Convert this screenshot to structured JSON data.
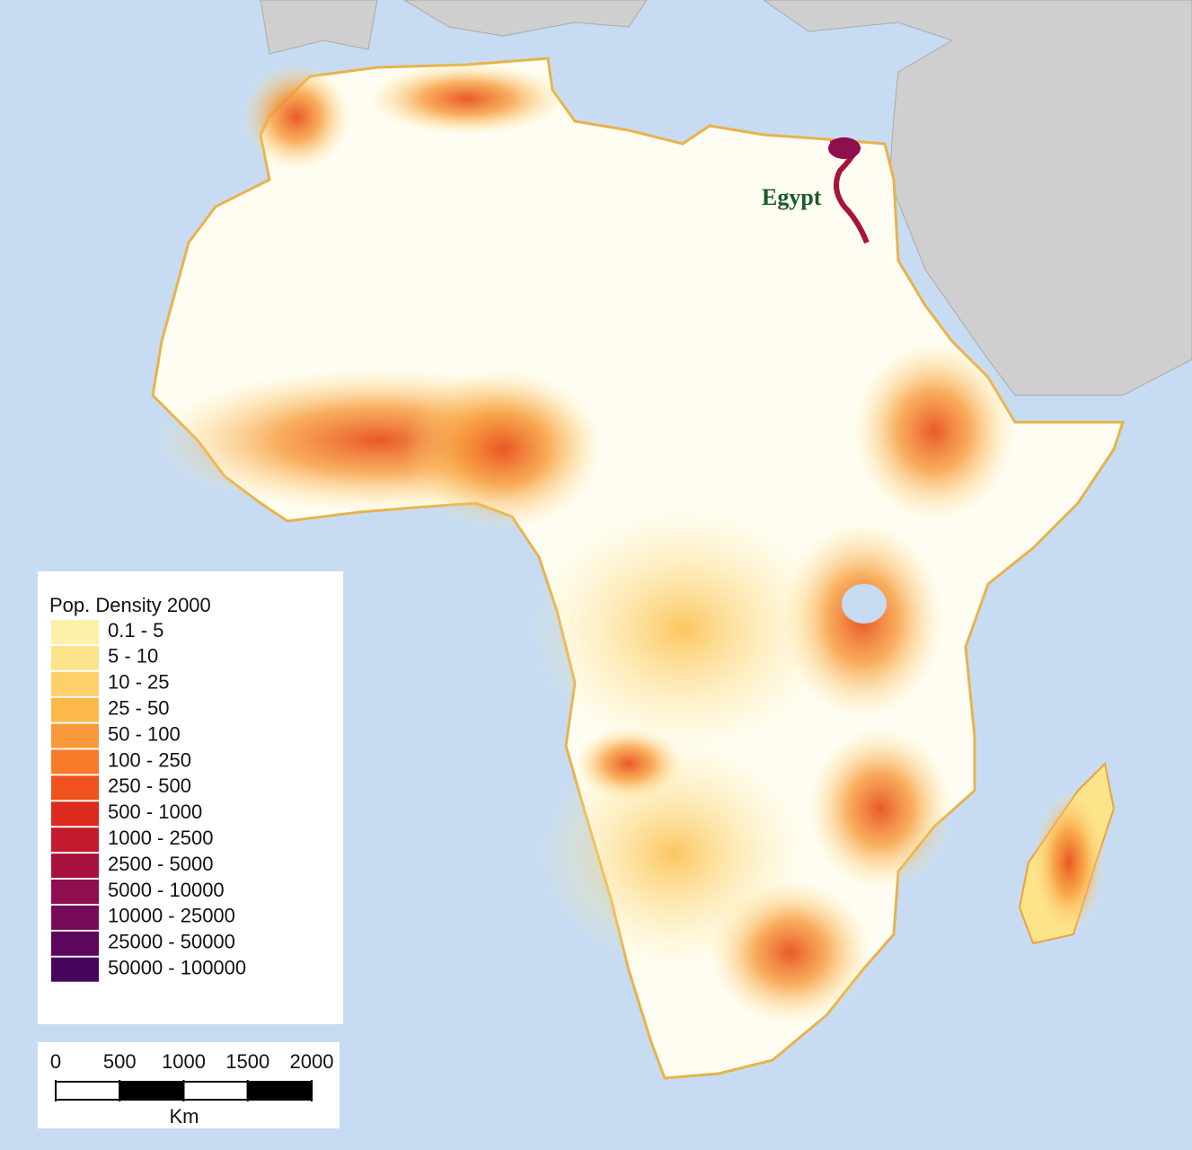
{
  "map": {
    "place_labels": [
      {
        "text": "Egypt"
      }
    ],
    "legend": {
      "title": "Pop. Density 2000",
      "items": [
        {
          "label": "0.1 - 5",
          "color": "#fdf0a8"
        },
        {
          "label": "5 - 10",
          "color": "#fde38a"
        },
        {
          "label": "10 - 25",
          "color": "#fdd06a"
        },
        {
          "label": "25 - 50",
          "color": "#fcb94a"
        },
        {
          "label": "50 - 100",
          "color": "#f99a3a"
        },
        {
          "label": "100 - 250",
          "color": "#f77a2a"
        },
        {
          "label": "250 - 500",
          "color": "#f0521e"
        },
        {
          "label": "500 - 1000",
          "color": "#dc2a1e"
        },
        {
          "label": "1000 - 2500",
          "color": "#c41a2e"
        },
        {
          "label": "2500 - 5000",
          "color": "#a8123e"
        },
        {
          "label": "5000 - 10000",
          "color": "#8e0e4e"
        },
        {
          "label": "10000 - 25000",
          "color": "#760a5a"
        },
        {
          "label": "25000 - 50000",
          "color": "#5e065e"
        },
        {
          "label": "50000 - 100000",
          "color": "#46045e"
        }
      ]
    },
    "scale_bar": {
      "ticks": [
        0,
        500,
        1000,
        1500,
        2000
      ],
      "unit": "Km"
    }
  }
}
